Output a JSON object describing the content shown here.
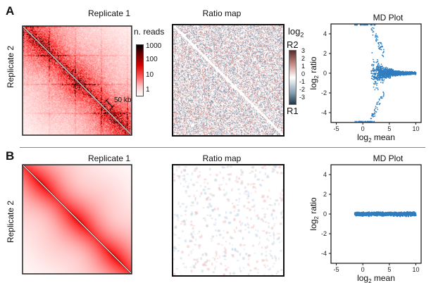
{
  "panels": [
    {
      "letter": "A",
      "heatmap_title": "Replicate 1",
      "heatmap_ylabel": "Replicate 2",
      "colorbar_title": "n. reads",
      "colorbar_ticks": [
        "1000",
        "100",
        "10",
        "1"
      ],
      "scale_annotation": "50 kb",
      "ratio_title": "Ratio map",
      "ratio_colorbar_title": "log",
      "ratio_colorbar_title_sub": "2",
      "ratio_top_label": "R2",
      "ratio_bottom_label": "R1",
      "ratio_ticks": [
        "3",
        "2",
        "1",
        "0",
        "-1",
        "-2",
        "-3"
      ],
      "md_title": "MD Plot"
    },
    {
      "letter": "B",
      "heatmap_title": "Replicate 1",
      "heatmap_ylabel": "Replicate 2",
      "ratio_title": "Ratio map",
      "md_title": "MD Plot"
    }
  ],
  "chart_data": [
    {
      "type": "scatter",
      "title": "MD Plot",
      "xlabel": "log2 mean",
      "xlabel_base": "log",
      "xlabel_sub": "2",
      "xlabel_rest": " mean",
      "ylabel_base": "log",
      "ylabel_sub": "2",
      "ylabel_rest": " ratio",
      "xlim": [
        -6,
        11
      ],
      "ylim": [
        -5,
        5
      ],
      "xticks": [
        -5,
        0,
        5,
        10
      ],
      "yticks": [
        4,
        2,
        0,
        -2,
        -4
      ],
      "shape": "funnel",
      "funnel_start_x": 1.5,
      "funnel_spread_at_start": 4.2,
      "cluster_x_range": [
        3,
        10
      ],
      "outliers_top": {
        "x_range": [
          -1.5,
          2.5
        ],
        "y": 5
      },
      "outliers_bottom": {
        "x_range": [
          -1.5,
          2.5
        ],
        "y": -5
      },
      "color": "#2f7dbf"
    },
    {
      "type": "scatter",
      "title": "MD Plot",
      "xlabel": "log2 mean",
      "xlabel_base": "log",
      "xlabel_sub": "2",
      "xlabel_rest": " mean",
      "ylabel_base": "log",
      "ylabel_sub": "2",
      "ylabel_rest": " ratio",
      "xlim": [
        -6,
        11
      ],
      "ylim": [
        -5,
        5
      ],
      "xticks": [
        -5,
        0,
        5,
        10
      ],
      "yticks": [
        4,
        2,
        0,
        -2,
        -4
      ],
      "shape": "band",
      "band_x_range": [
        -1.5,
        10
      ],
      "band_half_height": 0.3,
      "color": "#2f7dbf"
    }
  ]
}
